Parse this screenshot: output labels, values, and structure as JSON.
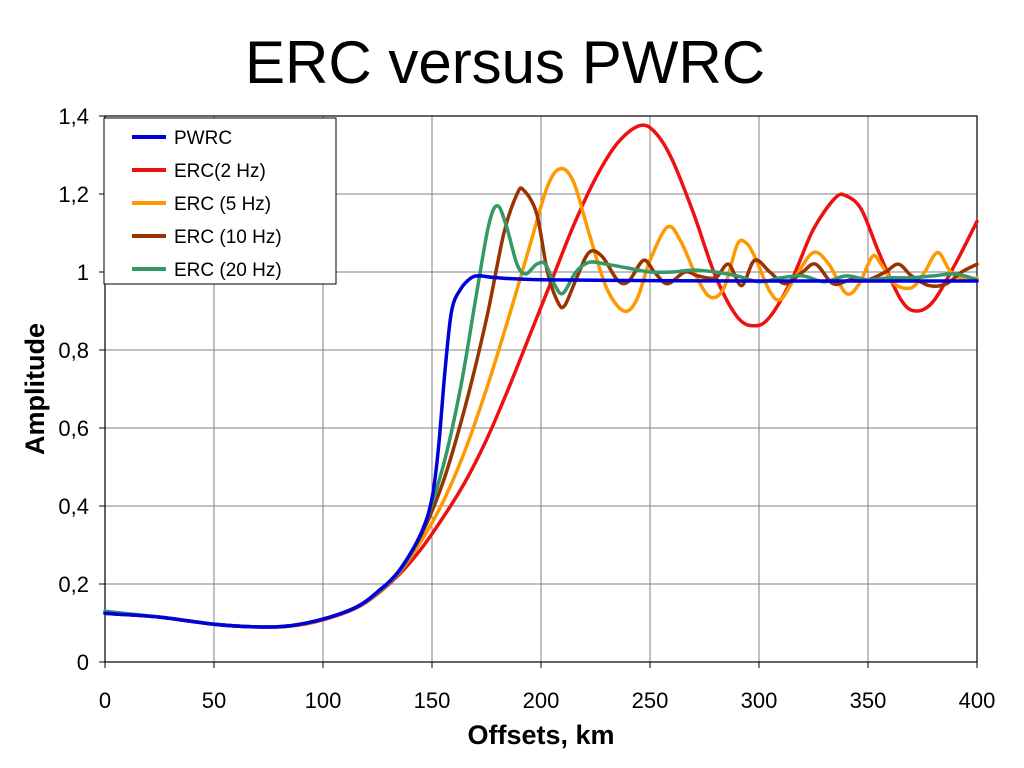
{
  "chart_data": {
    "type": "line",
    "title": "ERC versus PWRC",
    "xlabel": "Offsets, km",
    "ylabel": "Amplitude",
    "xlim": [
      0,
      400
    ],
    "ylim": [
      0,
      1.4
    ],
    "x_ticks": [
      0,
      50,
      100,
      150,
      200,
      250,
      300,
      350,
      400
    ],
    "x_tick_labels": [
      "0",
      "50",
      "100",
      "150",
      "200",
      "250",
      "300",
      "350",
      "400"
    ],
    "y_ticks": [
      0,
      0.2,
      0.4,
      0.6,
      0.8,
      1,
      1.2,
      1.4
    ],
    "y_tick_labels": [
      "0",
      "0,2",
      "0,4",
      "0,6",
      "0,8",
      "1",
      "1,2",
      "1,4"
    ],
    "grid": true,
    "legend_position": "top-left",
    "series": [
      {
        "name": "PWRC",
        "color": "#0000dd",
        "points": [
          [
            0,
            0.125
          ],
          [
            25,
            0.115
          ],
          [
            50,
            0.097
          ],
          [
            70,
            0.09
          ],
          [
            85,
            0.093
          ],
          [
            100,
            0.11
          ],
          [
            115,
            0.14
          ],
          [
            125,
            0.18
          ],
          [
            135,
            0.235
          ],
          [
            145,
            0.33
          ],
          [
            150,
            0.42
          ],
          [
            153,
            0.55
          ],
          [
            156,
            0.75
          ],
          [
            159,
            0.9
          ],
          [
            163,
            0.955
          ],
          [
            168,
            0.985
          ],
          [
            172,
            0.99
          ],
          [
            180,
            0.985
          ],
          [
            200,
            0.98
          ],
          [
            250,
            0.978
          ],
          [
            300,
            0.977
          ],
          [
            350,
            0.977
          ],
          [
            400,
            0.977
          ]
        ]
      },
      {
        "name": "ERC(2 Hz)",
        "color": "#ee1111",
        "points": [
          [
            0,
            0.125
          ],
          [
            25,
            0.115
          ],
          [
            50,
            0.097
          ],
          [
            70,
            0.09
          ],
          [
            85,
            0.092
          ],
          [
            100,
            0.108
          ],
          [
            115,
            0.138
          ],
          [
            125,
            0.175
          ],
          [
            135,
            0.225
          ],
          [
            145,
            0.29
          ],
          [
            155,
            0.37
          ],
          [
            165,
            0.46
          ],
          [
            175,
            0.57
          ],
          [
            185,
            0.7
          ],
          [
            195,
            0.84
          ],
          [
            205,
            0.98
          ],
          [
            215,
            1.12
          ],
          [
            225,
            1.24
          ],
          [
            235,
            1.33
          ],
          [
            245,
            1.375
          ],
          [
            252,
            1.36
          ],
          [
            260,
            1.29
          ],
          [
            270,
            1.15
          ],
          [
            280,
            0.99
          ],
          [
            290,
            0.885
          ],
          [
            298,
            0.862
          ],
          [
            305,
            0.885
          ],
          [
            315,
            0.98
          ],
          [
            325,
            1.11
          ],
          [
            335,
            1.19
          ],
          [
            340,
            1.195
          ],
          [
            347,
            1.16
          ],
          [
            355,
            1.05
          ],
          [
            365,
            0.93
          ],
          [
            372,
            0.9
          ],
          [
            380,
            0.925
          ],
          [
            390,
            1.02
          ],
          [
            400,
            1.13
          ]
        ]
      },
      {
        "name": "ERC (5 Hz)",
        "color": "#ff9900",
        "points": [
          [
            0,
            0.125
          ],
          [
            25,
            0.115
          ],
          [
            50,
            0.097
          ],
          [
            70,
            0.09
          ],
          [
            85,
            0.092
          ],
          [
            100,
            0.109
          ],
          [
            115,
            0.14
          ],
          [
            125,
            0.177
          ],
          [
            135,
            0.23
          ],
          [
            145,
            0.31
          ],
          [
            155,
            0.41
          ],
          [
            165,
            0.54
          ],
          [
            175,
            0.7
          ],
          [
            185,
            0.88
          ],
          [
            195,
            1.07
          ],
          [
            203,
            1.22
          ],
          [
            209,
            1.265
          ],
          [
            215,
            1.23
          ],
          [
            222,
            1.1
          ],
          [
            230,
            0.96
          ],
          [
            238,
            0.9
          ],
          [
            244,
            0.93
          ],
          [
            250,
            1.03
          ],
          [
            258,
            1.115
          ],
          [
            264,
            1.08
          ],
          [
            272,
            0.98
          ],
          [
            278,
            0.935
          ],
          [
            284,
            0.96
          ],
          [
            290,
            1.07
          ],
          [
            294,
            1.075
          ],
          [
            298,
            1.04
          ],
          [
            305,
            0.95
          ],
          [
            310,
            0.93
          ],
          [
            317,
            0.99
          ],
          [
            325,
            1.05
          ],
          [
            332,
            1.02
          ],
          [
            340,
            0.945
          ],
          [
            346,
            0.97
          ],
          [
            352,
            1.04
          ],
          [
            356,
            1.02
          ],
          [
            362,
            0.97
          ],
          [
            370,
            0.96
          ],
          [
            376,
            1.0
          ],
          [
            382,
            1.05
          ],
          [
            388,
            1.0
          ],
          [
            395,
            0.98
          ],
          [
            400,
            0.985
          ]
        ]
      },
      {
        "name": "ERC (10 Hz)",
        "color": "#993300",
        "points": [
          [
            0,
            0.125
          ],
          [
            25,
            0.115
          ],
          [
            50,
            0.097
          ],
          [
            70,
            0.09
          ],
          [
            85,
            0.093
          ],
          [
            100,
            0.11
          ],
          [
            115,
            0.14
          ],
          [
            125,
            0.178
          ],
          [
            135,
            0.232
          ],
          [
            145,
            0.325
          ],
          [
            155,
            0.46
          ],
          [
            165,
            0.65
          ],
          [
            175,
            0.88
          ],
          [
            183,
            1.1
          ],
          [
            189,
            1.2
          ],
          [
            192,
            1.21
          ],
          [
            198,
            1.15
          ],
          [
            203,
            1.0
          ],
          [
            208,
            0.92
          ],
          [
            211,
            0.915
          ],
          [
            216,
            0.98
          ],
          [
            222,
            1.05
          ],
          [
            228,
            1.04
          ],
          [
            235,
            0.98
          ],
          [
            240,
            0.975
          ],
          [
            247,
            1.03
          ],
          [
            252,
            1.0
          ],
          [
            258,
            0.97
          ],
          [
            266,
            1.0
          ],
          [
            272,
            0.99
          ],
          [
            280,
            0.985
          ],
          [
            286,
            1.02
          ],
          [
            292,
            0.965
          ],
          [
            298,
            1.03
          ],
          [
            305,
            1.0
          ],
          [
            312,
            0.97
          ],
          [
            320,
            1.0
          ],
          [
            326,
            1.02
          ],
          [
            334,
            0.97
          ],
          [
            342,
            0.98
          ],
          [
            350,
            0.98
          ],
          [
            358,
            1.0
          ],
          [
            364,
            1.02
          ],
          [
            370,
            0.99
          ],
          [
            378,
            0.965
          ],
          [
            386,
            0.97
          ],
          [
            393,
            1.0
          ],
          [
            400,
            1.02
          ]
        ]
      },
      {
        "name": "ERC (20 Hz)",
        "color": "#339966",
        "points": [
          [
            0,
            0.13
          ],
          [
            25,
            0.115
          ],
          [
            50,
            0.097
          ],
          [
            70,
            0.09
          ],
          [
            85,
            0.093
          ],
          [
            100,
            0.11
          ],
          [
            115,
            0.14
          ],
          [
            125,
            0.178
          ],
          [
            135,
            0.232
          ],
          [
            145,
            0.33
          ],
          [
            155,
            0.5
          ],
          [
            163,
            0.7
          ],
          [
            170,
            0.93
          ],
          [
            176,
            1.12
          ],
          [
            180,
            1.17
          ],
          [
            184,
            1.12
          ],
          [
            189,
            1.02
          ],
          [
            193,
            0.995
          ],
          [
            198,
            1.02
          ],
          [
            202,
            1.02
          ],
          [
            206,
            0.97
          ],
          [
            210,
            0.945
          ],
          [
            216,
            1.0
          ],
          [
            222,
            1.025
          ],
          [
            230,
            1.02
          ],
          [
            240,
            1.01
          ],
          [
            250,
            1.0
          ],
          [
            260,
            1.0
          ],
          [
            270,
            1.005
          ],
          [
            280,
            1.0
          ],
          [
            290,
            0.99
          ],
          [
            300,
            0.975
          ],
          [
            310,
            0.985
          ],
          [
            320,
            0.99
          ],
          [
            330,
            0.975
          ],
          [
            340,
            0.99
          ],
          [
            350,
            0.98
          ],
          [
            360,
            0.985
          ],
          [
            370,
            0.985
          ],
          [
            380,
            0.99
          ],
          [
            390,
            0.995
          ],
          [
            400,
            0.98
          ]
        ]
      }
    ]
  }
}
